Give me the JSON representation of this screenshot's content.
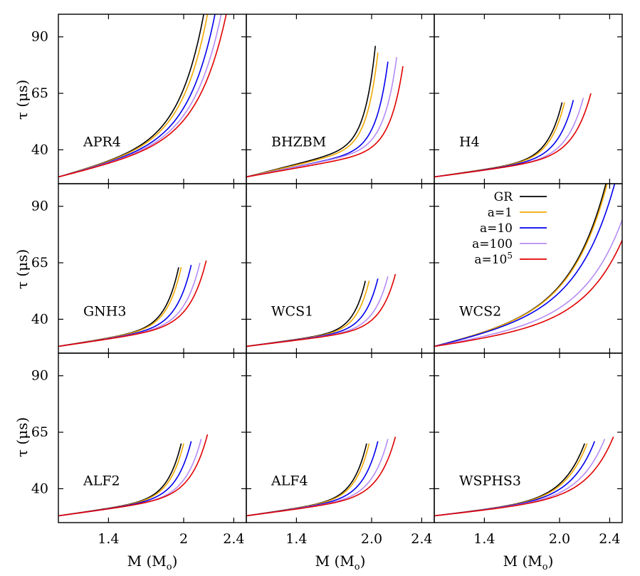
{
  "figure": {
    "xlabel": "M (M",
    "xlabel_sub": "o",
    "xlabel_close": ")",
    "ylabel": "τ (μs)"
  },
  "chart_data": {
    "type": "line",
    "grid": "3x3",
    "x_range": [
      1.0,
      2.5
    ],
    "ylim": [
      25,
      100
    ],
    "yticks": [
      "40",
      "65",
      "90"
    ],
    "series_legend": [
      {
        "key": "GR",
        "label": "GR",
        "color": "#000000"
      },
      {
        "key": "a1",
        "label": "a=1",
        "color": "#f0a800"
      },
      {
        "key": "a10",
        "label": "a=10",
        "color": "#0000ee"
      },
      {
        "key": "a100",
        "label": "a=100",
        "color": "#b58cf5"
      },
      {
        "key": "a1e5",
        "label": "a=10",
        "label_sup": "5",
        "color": "#e00000"
      }
    ],
    "legend_placement": "panel 6, top-right",
    "panels": [
      {
        "name": "APR4",
        "xticks": [
          "1.4",
          "2",
          "2.4"
        ],
        "end_mass": [
          2.16,
          2.19,
          2.25,
          2.3,
          2.34
        ],
        "end_tau": [
          100,
          100,
          100,
          100,
          100
        ],
        "k": 6.0
      },
      {
        "name": "BHZBM",
        "xticks": [],
        "xticks_none": true,
        "end_mass": [
          2.03,
          2.05,
          2.13,
          2.2,
          2.25
        ],
        "end_tau": [
          86,
          83,
          79,
          81,
          77
        ],
        "k": 12.0
      },
      {
        "name": "H4",
        "xticks": [],
        "end_mass": [
          2.02,
          2.04,
          2.11,
          2.19,
          2.25
        ],
        "end_tau": [
          61,
          61,
          62,
          63,
          65
        ],
        "k": 9.0
      },
      {
        "name": "GNH3",
        "xticks": [],
        "end_mass": [
          1.96,
          1.98,
          2.06,
          2.13,
          2.18
        ],
        "end_tau": [
          63,
          63,
          64,
          65,
          66
        ],
        "k": 9.0
      },
      {
        "name": "WCS1",
        "xticks": [],
        "end_mass": [
          1.95,
          1.98,
          2.05,
          2.13,
          2.19
        ],
        "end_tau": [
          57,
          57,
          58,
          59,
          60
        ],
        "k": 10.0
      },
      {
        "name": "WCS2",
        "xticks": [],
        "end_mass": [
          2.37,
          2.38,
          2.44,
          2.5,
          2.5
        ],
        "end_tau": [
          100,
          100,
          100,
          84,
          75
        ],
        "k": 5.0
      },
      {
        "name": "ALF2",
        "xticks": [
          "1.4",
          "2",
          "2.4"
        ],
        "end_mass": [
          1.98,
          2.0,
          2.06,
          2.14,
          2.19
        ],
        "end_tau": [
          60,
          60,
          61,
          62,
          64
        ],
        "k": 9.0
      },
      {
        "name": "ALF4",
        "xticks": [
          "1.4",
          "2.0",
          "2.4"
        ],
        "end_mass": [
          1.96,
          1.98,
          2.05,
          2.13,
          2.19
        ],
        "end_tau": [
          60,
          60,
          61,
          62,
          63
        ],
        "k": 9.0
      },
      {
        "name": "WSPHS3",
        "xticks": [
          "1.4",
          "2.0",
          "2.4"
        ],
        "end_mass": [
          2.2,
          2.22,
          2.28,
          2.36,
          2.43
        ],
        "end_tau": [
          60,
          60,
          61,
          62,
          63
        ],
        "k": 7.0
      }
    ]
  }
}
